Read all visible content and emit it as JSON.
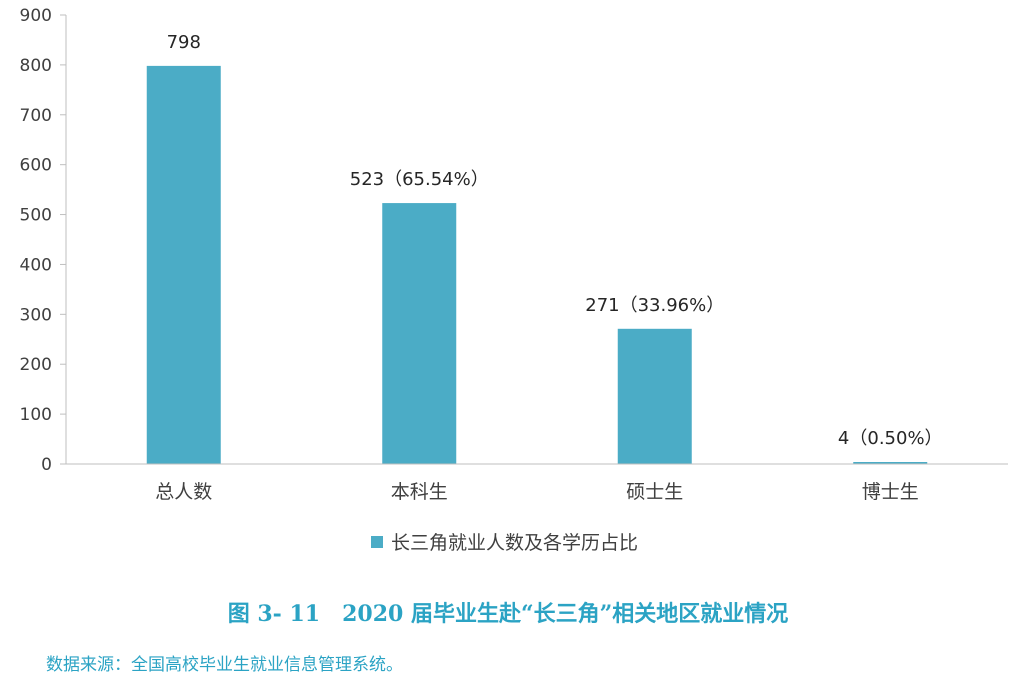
{
  "chart_data": {
    "type": "bar",
    "categories": [
      "总人数",
      "本科生",
      "硕士生",
      "博士生"
    ],
    "series": [
      {
        "name": "长三角就业人数及各学历占比",
        "values": [
          798,
          523,
          271,
          4
        ]
      }
    ],
    "data_labels": [
      "798",
      "523（65.54%）",
      "271（33.96%）",
      "4（0.50%）"
    ],
    "ylim": [
      0,
      900
    ],
    "yticks": [
      0,
      100,
      200,
      300,
      400,
      500,
      600,
      700,
      800,
      900
    ],
    "grid": false,
    "legend_position": "bottom",
    "bar_color": "#4bacc6"
  },
  "caption": "图 3- 11　2020 届毕业生赴“长三角”相关地区就业情况",
  "source": "数据来源：全国高校毕业生就业信息管理系统。"
}
